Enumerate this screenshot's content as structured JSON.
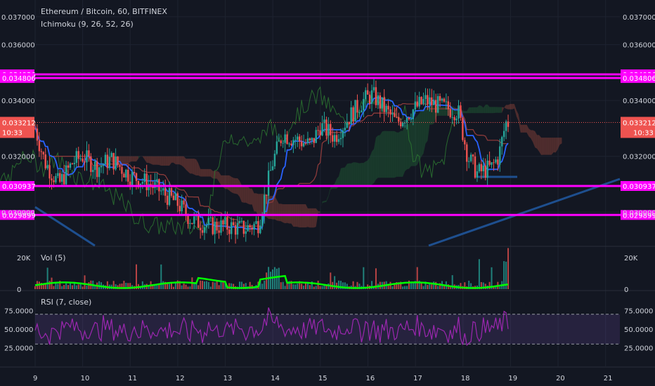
{
  "header": {
    "symbol": "Ethereum / Bitcoin, 60, BITFINEX",
    "indicator": "Ichimoku (9, 26, 52, 26)"
  },
  "price_panel": {
    "ticks": [
      "0.037000",
      "0.036000",
      "0.034000",
      "0.032000",
      "0.030000"
    ],
    "last_price": "0.033212",
    "last_time": "10:33",
    "levels": [
      {
        "label": "0.034936",
        "value": 0.034936
      },
      {
        "label": "0.034806",
        "value": 0.034806
      },
      {
        "label": "0.030937",
        "value": 0.030937
      },
      {
        "label": "0.029899",
        "value": 0.029899
      }
    ]
  },
  "volume_panel": {
    "title": "Vol (5)",
    "ticks": [
      "20K",
      "0"
    ]
  },
  "rsi_panel": {
    "title": "RSI (7, close)",
    "ticks": [
      "75.0000",
      "50.0000",
      "25.0000"
    ]
  },
  "time_axis": {
    "labels": [
      "9",
      "10",
      "11",
      "12",
      "13",
      "14",
      "15",
      "16",
      "17",
      "18",
      "19",
      "20",
      "21"
    ]
  },
  "colors": {
    "background": "#131722",
    "up": "#26a69a",
    "down": "#ef5350",
    "level": "#ff00ff",
    "kijun": "#8b3a3a",
    "tenkan": "#2962ff",
    "vol_ma": "#00ff00",
    "rsi": "#9c27b0"
  },
  "chart_data": {
    "type": "candlestick",
    "x_range": [
      9,
      21.3
    ],
    "ylim": [
      0.0288,
      0.0376
    ],
    "price_path": [
      [
        9.0,
        0.033
      ],
      [
        9.2,
        0.0318
      ],
      [
        9.5,
        0.031
      ],
      [
        9.8,
        0.0318
      ],
      [
        10.0,
        0.032
      ],
      [
        10.3,
        0.0316
      ],
      [
        10.6,
        0.0319
      ],
      [
        11.0,
        0.0313
      ],
      [
        11.3,
        0.0311
      ],
      [
        11.6,
        0.0308
      ],
      [
        12.0,
        0.0303
      ],
      [
        12.3,
        0.0297
      ],
      [
        12.7,
        0.0295
      ],
      [
        13.0,
        0.0295
      ],
      [
        13.4,
        0.0294
      ],
      [
        13.7,
        0.0296
      ],
      [
        14.0,
        0.0318
      ],
      [
        14.2,
        0.0328
      ],
      [
        14.5,
        0.0326
      ],
      [
        14.8,
        0.0324
      ],
      [
        15.0,
        0.0331
      ],
      [
        15.3,
        0.0327
      ],
      [
        15.6,
        0.0334
      ],
      [
        15.9,
        0.034
      ],
      [
        16.1,
        0.0342
      ],
      [
        16.3,
        0.0338
      ],
      [
        16.6,
        0.0332
      ],
      [
        16.9,
        0.0336
      ],
      [
        17.2,
        0.034
      ],
      [
        17.5,
        0.0338
      ],
      [
        17.9,
        0.0336
      ],
      [
        18.1,
        0.032
      ],
      [
        18.3,
        0.0314
      ],
      [
        18.6,
        0.0316
      ],
      [
        18.75,
        0.032
      ],
      [
        18.9,
        0.0332
      ]
    ],
    "horizontal_levels": [
      0.034936,
      0.034806,
      0.030937,
      0.029899
    ],
    "last_price": 0.033212,
    "volume_ylim": [
      0,
      25000
    ],
    "rsi_ylim": [
      0,
      100
    ],
    "rsi_bands": [
      70,
      30
    ]
  }
}
